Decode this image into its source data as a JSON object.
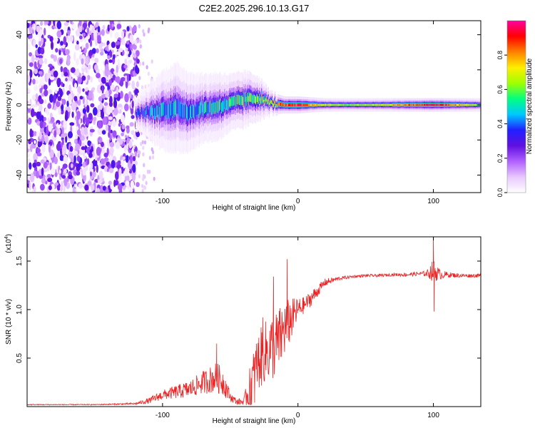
{
  "title": "C2E2.2025.296.10.13.G17",
  "chart_data": [
    {
      "type": "heatmap",
      "xlabel": "Height of straight line (km)",
      "ylabel": "Frequency (Hz)",
      "xlim": [
        -200,
        135
      ],
      "ylim": [
        -50,
        48
      ],
      "x_ticks": [
        -100,
        0,
        100
      ],
      "x_tick_labels": [
        "-100",
        "0",
        "100"
      ],
      "y_ticks": [
        -40,
        -20,
        0,
        20,
        40
      ],
      "y_tick_labels": [
        "-40",
        "-20",
        "0",
        "20",
        "40"
      ],
      "colorbar": {
        "label": "Normalized spectral amplitude",
        "range": [
          0,
          1
        ],
        "ticks": [
          0.0,
          0.2,
          0.4,
          0.6,
          0.8
        ],
        "tick_labels": [
          "0.0",
          "0.2",
          "0.4",
          "0.6",
          "0.8"
        ],
        "colors": [
          "#ffffff",
          "#e8c8ff",
          "#b060ff",
          "#6010e0",
          "#2020ff",
          "#00c8ff",
          "#00ff80",
          "#a0ff00",
          "#ffee00",
          "#ff8000",
          "#ff0000",
          "#ff00a0"
        ]
      },
      "noise_region": {
        "x_from": -200,
        "x_to": -118,
        "freq_from": -50,
        "freq_to": 48
      },
      "signal_ridge": {
        "x": [
          -120,
          -110,
          -100,
          -90,
          -80,
          -70,
          -60,
          -50,
          -40,
          -30,
          -20,
          -10,
          0,
          20,
          40,
          60,
          80,
          100,
          135
        ],
        "freq": [
          -5,
          -4,
          -3,
          -2,
          -4,
          -2,
          -1,
          1,
          3,
          4,
          1,
          0,
          0,
          0,
          0,
          0,
          0,
          0,
          0
        ],
        "spread_hz": [
          3,
          5,
          7,
          8,
          7,
          6,
          6,
          5,
          5,
          4,
          2,
          1.5,
          1.5,
          1.2,
          1.2,
          1.2,
          1.2,
          1.2,
          1.2
        ],
        "peak_amplitude": [
          0.4,
          0.45,
          0.5,
          0.55,
          0.5,
          0.55,
          0.6,
          0.6,
          0.65,
          0.7,
          0.8,
          0.9,
          0.95,
          0.7,
          0.65,
          0.7,
          0.85,
          1.0,
          0.6
        ]
      }
    },
    {
      "type": "line",
      "xlabel": "Height of straight line (km)",
      "ylabel": "SNR (10 * v/v)",
      "y_multiplier": "(x10",
      "y_multiplier_exp": "4",
      "y_multiplier_close": ")",
      "xlim": [
        -200,
        135
      ],
      "ylim": [
        0,
        1.75
      ],
      "x_ticks": [
        -100,
        0,
        100
      ],
      "x_tick_labels": [
        "-100",
        "0",
        "100"
      ],
      "y_ticks": [
        0.5,
        1.0,
        1.5
      ],
      "y_tick_labels": [
        "0.5",
        "1.0",
        "1.5"
      ],
      "series": [
        {
          "name": "SNR",
          "color": "#ee2222",
          "x": [
            -200,
            -150,
            -120,
            -110,
            -100,
            -90,
            -80,
            -70,
            -60,
            -55,
            -50,
            -45,
            -40,
            -35,
            -30,
            -25,
            -20,
            -15,
            -10,
            -5,
            0,
            5,
            10,
            15,
            20,
            25,
            30,
            40,
            50,
            60,
            70,
            80,
            90,
            95,
            100,
            105,
            110,
            120,
            135
          ],
          "values": [
            0.02,
            0.02,
            0.03,
            0.06,
            0.12,
            0.15,
            0.18,
            0.25,
            0.3,
            0.25,
            0.1,
            0.05,
            0.05,
            0.2,
            0.45,
            0.55,
            0.6,
            0.65,
            0.8,
            0.9,
            1.0,
            1.05,
            1.12,
            1.2,
            1.28,
            1.3,
            1.32,
            1.34,
            1.35,
            1.35,
            1.36,
            1.36,
            1.37,
            1.37,
            1.4,
            1.36,
            1.36,
            1.35,
            1.35
          ],
          "jitter": [
            0.005,
            0.005,
            0.01,
            0.03,
            0.05,
            0.07,
            0.09,
            0.12,
            0.16,
            0.14,
            0.05,
            0.03,
            0.04,
            0.25,
            0.3,
            0.32,
            0.35,
            0.35,
            0.3,
            0.22,
            0.12,
            0.08,
            0.08,
            0.06,
            0.04,
            0.03,
            0.02,
            0.015,
            0.015,
            0.015,
            0.015,
            0.02,
            0.02,
            0.03,
            0.12,
            0.05,
            0.03,
            0.02,
            0.02
          ],
          "spikes": [
            {
              "x": 100,
              "value": 1.76
            },
            {
              "x": 100.5,
              "value": 0.98
            },
            {
              "x": -8,
              "value": 1.52
            },
            {
              "x": -18,
              "value": 1.34
            },
            {
              "x": -26,
              "value": 0.92
            },
            {
              "x": -60,
              "value": 0.65
            },
            {
              "x": -32,
              "value": 0.04
            }
          ]
        }
      ]
    }
  ]
}
